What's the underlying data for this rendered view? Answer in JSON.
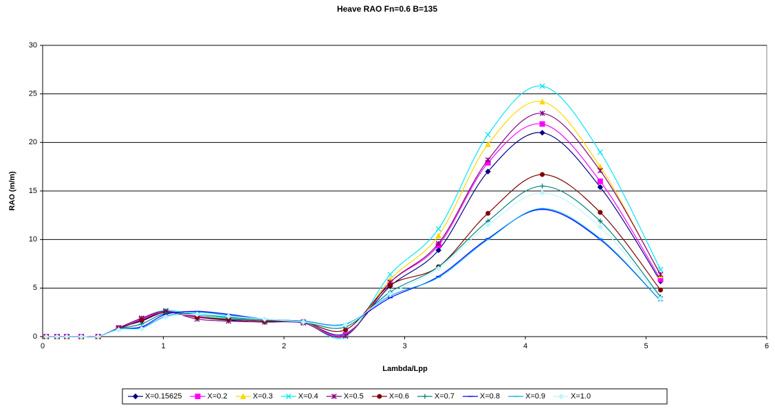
{
  "chart_data": {
    "type": "line",
    "title": "Heave RAO Fn=0.6 B=135",
    "x_label": "Lambda/Lpp",
    "y_label": "RAO (m/m)",
    "x": [
      0.03,
      0.12,
      0.2,
      0.32,
      0.46,
      0.63,
      0.82,
      1.02,
      1.28,
      1.54,
      1.84,
      2.16,
      2.51,
      2.88,
      3.28,
      3.69,
      4.14,
      4.62,
      5.12
    ],
    "series": [
      {
        "name": "X=0.15625",
        "color": "#000080",
        "marker": "diamond",
        "values": [
          0,
          0,
          0,
          0,
          0,
          0.9,
          1.6,
          2.5,
          2.0,
          1.7,
          1.5,
          1.5,
          0.3,
          5.2,
          8.9,
          17.0,
          21.0,
          15.4,
          5.7
        ]
      },
      {
        "name": "X=0.2",
        "color": "#ff00ff",
        "marker": "square",
        "values": [
          0,
          0,
          0,
          0,
          0,
          0.9,
          1.8,
          2.6,
          2.1,
          1.8,
          1.6,
          1.5,
          0.2,
          5.6,
          9.4,
          17.9,
          21.9,
          16.0,
          5.9
        ]
      },
      {
        "name": "X=0.3",
        "color": "#ffd700",
        "marker": "triangle",
        "values": [
          0,
          0,
          0,
          0,
          0,
          0.9,
          1.9,
          2.7,
          2.2,
          1.8,
          1.6,
          1.5,
          0.1,
          5.9,
          10.4,
          19.8,
          24.2,
          17.5,
          6.3
        ]
      },
      {
        "name": "X=0.4",
        "color": "#00e5ff",
        "marker": "x",
        "values": [
          0,
          0,
          0,
          0,
          0,
          0.9,
          1.9,
          2.7,
          2.2,
          1.9,
          1.6,
          1.5,
          0.0,
          6.4,
          11.1,
          20.8,
          25.8,
          19.0,
          6.9
        ]
      },
      {
        "name": "X=0.5",
        "color": "#800080",
        "marker": "star",
        "values": [
          0,
          0,
          0,
          0,
          0,
          0.9,
          1.9,
          2.6,
          1.8,
          1.6,
          1.5,
          1.4,
          0.1,
          5.6,
          9.6,
          18.2,
          23.0,
          17.1,
          6.4
        ]
      },
      {
        "name": "X=0.6",
        "color": "#800000",
        "marker": "circle",
        "values": [
          0,
          0,
          0,
          0,
          0,
          0.8,
          1.7,
          2.5,
          2.0,
          1.8,
          1.6,
          1.5,
          0.7,
          5.3,
          7.2,
          12.7,
          16.7,
          12.8,
          4.8
        ]
      },
      {
        "name": "X=0.7",
        "color": "#008080",
        "marker": "plus",
        "values": [
          0,
          0,
          0,
          0,
          0,
          0.8,
          1.3,
          2.4,
          2.3,
          2.0,
          1.7,
          1.5,
          1.0,
          4.6,
          7.2,
          11.9,
          15.5,
          11.9,
          4.1
        ]
      },
      {
        "name": "X=0.8",
        "color": "#0000ff",
        "marker": "dash",
        "values": [
          0,
          0,
          0,
          0,
          0,
          0.8,
          1.0,
          2.3,
          2.6,
          2.3,
          1.8,
          1.6,
          1.3,
          4.0,
          6.2,
          10.1,
          13.1,
          10.0,
          3.7
        ]
      },
      {
        "name": "X=0.9",
        "color": "#00aaee",
        "marker": "dash",
        "values": [
          0,
          0,
          0,
          0,
          0,
          0.8,
          0.9,
          2.1,
          2.5,
          2.2,
          1.8,
          1.6,
          1.3,
          4.2,
          6.1,
          10.0,
          13.2,
          10.1,
          3.7
        ]
      },
      {
        "name": "X=1.0",
        "color": "#bff5ff",
        "marker": "diamond",
        "values": [
          0,
          0,
          0,
          0,
          0,
          0.7,
          0.8,
          2.0,
          2.3,
          2.1,
          1.8,
          1.5,
          1.2,
          4.4,
          7.0,
          11.5,
          14.8,
          11.3,
          3.9
        ]
      }
    ],
    "xlim": [
      0,
      6
    ],
    "xticks": [
      0,
      1,
      2,
      3,
      4,
      5,
      6
    ],
    "ylim": [
      0,
      30
    ],
    "yticks": [
      0,
      5,
      10,
      15,
      20,
      25,
      30
    ],
    "grid": true,
    "legend": "bottom"
  }
}
